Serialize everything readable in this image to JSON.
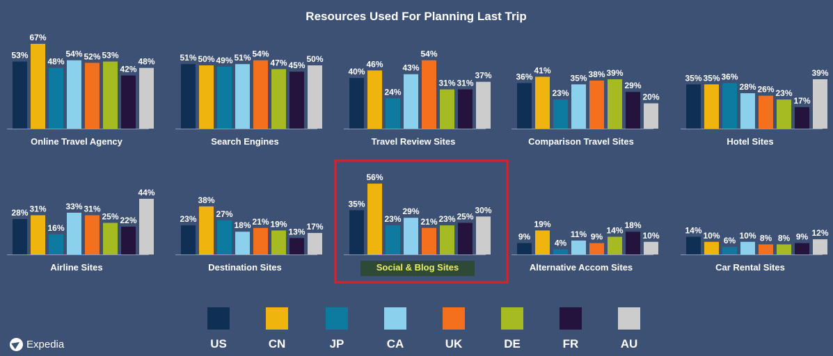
{
  "chart_data": {
    "type": "bar",
    "title": "Resources Used For Planning Last Trip",
    "series": [
      {
        "name": "US",
        "color": "#0f3054"
      },
      {
        "name": "CN",
        "color": "#f0b40e"
      },
      {
        "name": "JP",
        "color": "#0d7aa0"
      },
      {
        "name": "CA",
        "color": "#8bd1ee"
      },
      {
        "name": "UK",
        "color": "#f5701c"
      },
      {
        "name": "DE",
        "color": "#a6ba22"
      },
      {
        "name": "FR",
        "color": "#24143d"
      },
      {
        "name": "AU",
        "color": "#cccccc"
      }
    ],
    "panels": [
      {
        "label": "Online Travel Agency",
        "values": [
          53,
          67,
          48,
          54,
          52,
          53,
          42,
          48
        ],
        "value_labels": [
          "53%",
          "67%",
          "48%",
          "54%",
          "52%",
          "53%",
          "42%",
          "48%"
        ]
      },
      {
        "label": "Search Engines",
        "values": [
          51,
          50,
          49,
          51,
          54,
          47,
          45,
          50
        ],
        "value_labels": [
          "51%",
          "50%",
          "49%",
          "51%",
          "54%",
          "47%",
          "45%",
          "50%"
        ]
      },
      {
        "label": "Travel Review Sites",
        "values": [
          40,
          46,
          24,
          43,
          54,
          31,
          31,
          37
        ],
        "value_labels": [
          "40%",
          "46%",
          "24%",
          "43%",
          "54%",
          "31%",
          "31%",
          "37%"
        ]
      },
      {
        "label": "Comparison Travel Sites",
        "values": [
          36,
          41,
          23,
          35,
          38,
          39,
          29,
          20
        ],
        "value_labels": [
          "36%",
          "41%",
          "23%",
          "35%",
          "38%",
          "39%",
          "29%",
          "20%"
        ]
      },
      {
        "label": "Hotel Sites",
        "values": [
          35,
          35,
          36,
          28,
          26,
          23,
          17,
          39
        ],
        "value_labels": [
          "35%",
          "35%",
          "36%",
          "28%",
          "26%",
          "23%",
          "17%",
          "39%"
        ]
      },
      {
        "label": "Airline Sites",
        "values": [
          28,
          31,
          16,
          33,
          31,
          25,
          22,
          44
        ],
        "value_labels": [
          "28%",
          "31%",
          "16%",
          "33%",
          "31%",
          "25%",
          "22%",
          "44%"
        ]
      },
      {
        "label": "Destination Sites",
        "values": [
          23,
          38,
          27,
          18,
          21,
          19,
          13,
          17
        ],
        "value_labels": [
          "23%",
          "38%",
          "27%",
          "18%",
          "21%",
          "19%",
          "13%",
          "17%"
        ]
      },
      {
        "label": "Social & Blog Sites",
        "values": [
          35,
          56,
          23,
          29,
          21,
          23,
          25,
          30
        ],
        "value_labels": [
          "35%",
          "56%",
          "23%",
          "29%",
          "21%",
          "23%",
          "25%",
          "30%"
        ],
        "highlighted": true
      },
      {
        "label": "Alternative Accom Sites",
        "values": [
          9,
          19,
          4,
          11,
          9,
          14,
          18,
          10
        ],
        "value_labels": [
          "9%",
          "19%",
          "4%",
          "11%",
          "9%",
          "14%",
          "18%",
          "10%"
        ]
      },
      {
        "label": "Car Rental Sites",
        "values": [
          14,
          10,
          6,
          10,
          8,
          8,
          9,
          12
        ],
        "value_labels": [
          "14%",
          "10%",
          "6%",
          "10%",
          "8%",
          "8%",
          "9%",
          "12%"
        ]
      }
    ],
    "ylim": [
      0,
      67
    ],
    "legend_position": "bottom",
    "grid": false,
    "highlight_color": "#e21d25",
    "highlight_label_bg": "#2e4a36",
    "highlight_label_color": "#ecec6a",
    "background": "#3d5175"
  },
  "logo": {
    "text": "Expedia"
  }
}
